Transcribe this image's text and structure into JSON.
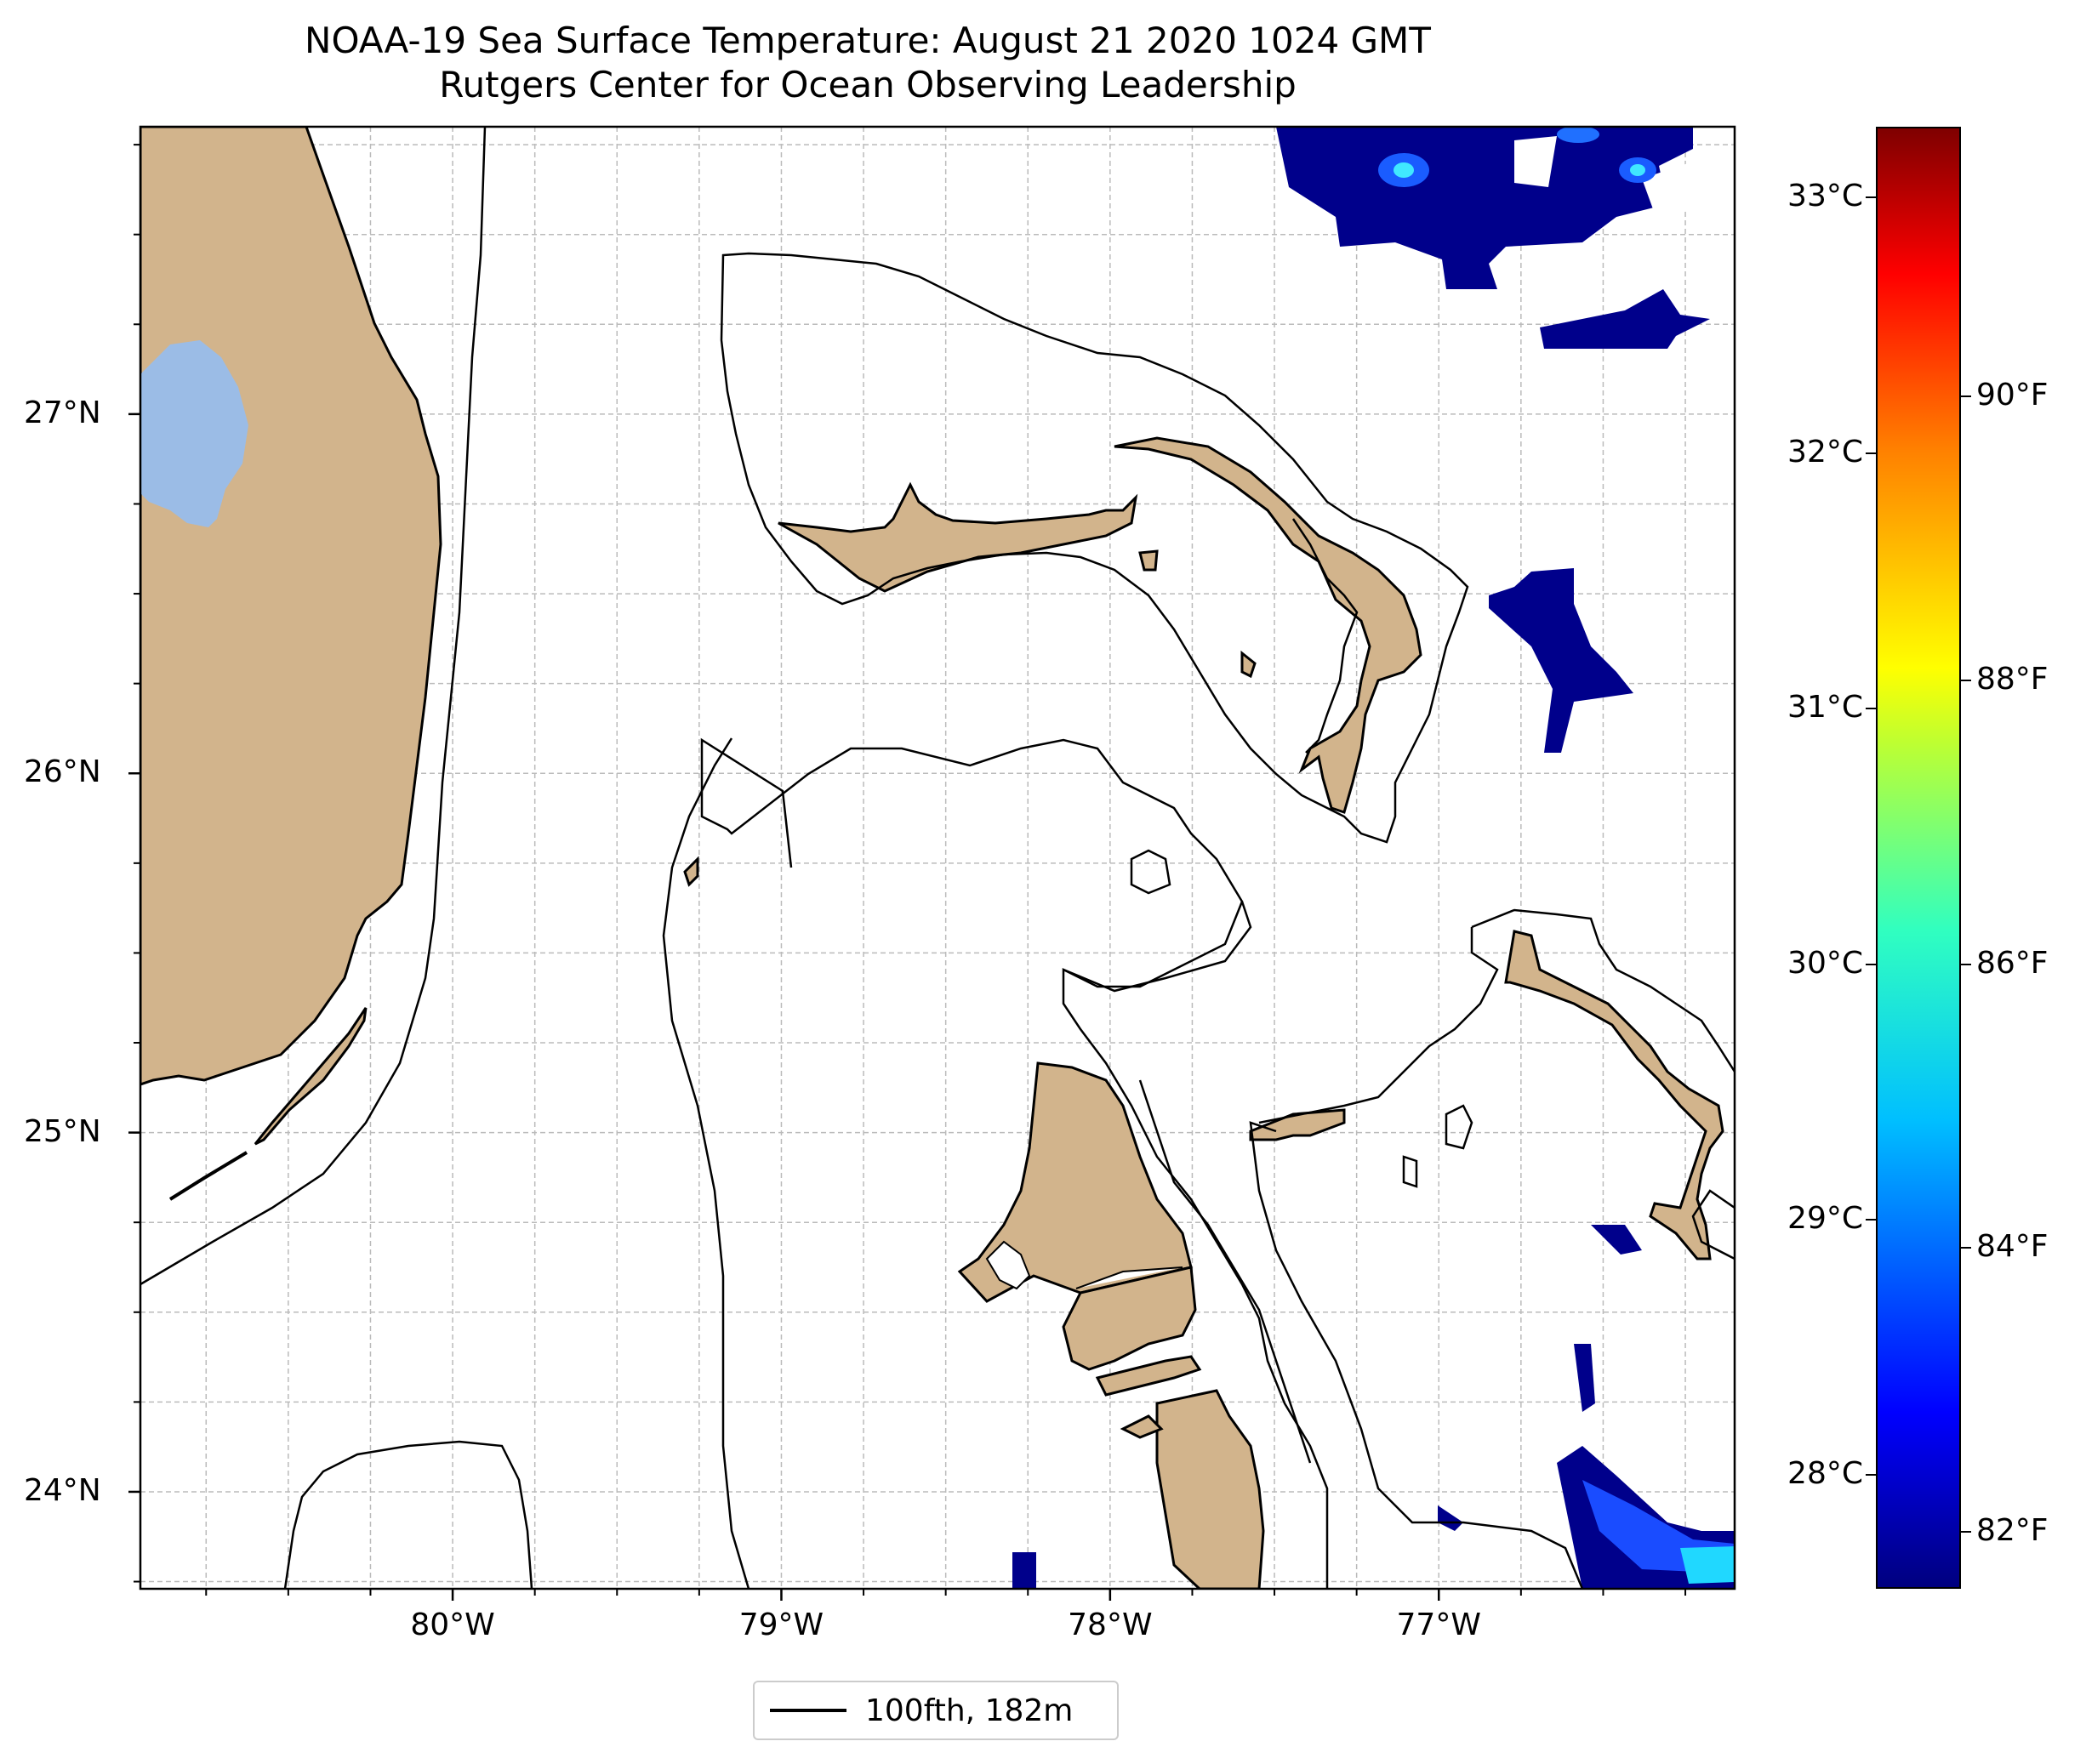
{
  "title": {
    "line1": "NOAA-19 Sea Surface Temperature: August 21 2020 1024 GMT",
    "line2": "Rutgers Center for Ocean Observing Leadership"
  },
  "map": {
    "lon_range": [
      -80.95,
      -76.1
    ],
    "lat_range": [
      23.73,
      27.8
    ],
    "lon_ticks": [
      {
        "value": -80,
        "label": "80°W"
      },
      {
        "value": -79,
        "label": "79°W"
      },
      {
        "value": -78,
        "label": "78°W"
      },
      {
        "value": -77,
        "label": "77°W"
      }
    ],
    "lat_ticks": [
      {
        "value": 27,
        "label": "27°N"
      },
      {
        "value": 26,
        "label": "26°N"
      },
      {
        "value": 25,
        "label": "25°N"
      },
      {
        "value": 24,
        "label": "24°N"
      }
    ],
    "gridlines": true,
    "colors": {
      "land": "#d2b48c",
      "lake": "#9bbce6",
      "sst_dark": "#00008b",
      "sst_blue": "#1040ff",
      "sst_cyan": "#20d8ff"
    }
  },
  "legend": {
    "label": "100fth, 182m",
    "placement": "bottom-center"
  },
  "colorbar": {
    "colormap": "jet",
    "min_f": 81.6,
    "max_f": 91.9,
    "celsius_ticks": [
      {
        "value": 28,
        "label": "28°C"
      },
      {
        "value": 29,
        "label": "29°C"
      },
      {
        "value": 30,
        "label": "30°C"
      },
      {
        "value": 31,
        "label": "31°C"
      },
      {
        "value": 32,
        "label": "32°C"
      },
      {
        "value": 33,
        "label": "33°C"
      }
    ],
    "fahrenheit_ticks": [
      {
        "value": 82,
        "label": "82°F"
      },
      {
        "value": 84,
        "label": "84°F"
      },
      {
        "value": 86,
        "label": "86°F"
      },
      {
        "value": 88,
        "label": "88°F"
      },
      {
        "value": 90,
        "label": "90°F"
      }
    ]
  }
}
